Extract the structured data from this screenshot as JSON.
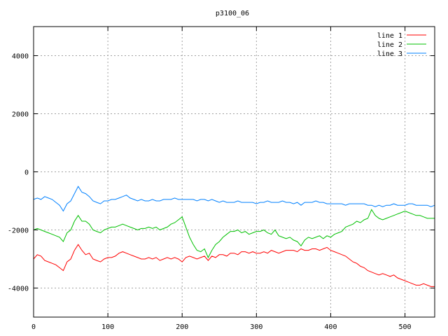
{
  "chart_data": {
    "type": "line",
    "title": "p3100_06",
    "xlabel": "",
    "ylabel": "",
    "xlim": [
      0,
      540
    ],
    "ylim": [
      -5000,
      5000
    ],
    "xticks": [
      0,
      100,
      200,
      300,
      400,
      500
    ],
    "yticks": [
      -4000,
      -2000,
      0,
      2000,
      4000
    ],
    "grid": true,
    "legend": "top-right",
    "series": [
      {
        "name": "line 1",
        "color": "#ff0000",
        "x": [
          0,
          5,
          10,
          15,
          20,
          25,
          30,
          35,
          40,
          45,
          50,
          55,
          60,
          65,
          70,
          75,
          80,
          85,
          90,
          95,
          100,
          105,
          110,
          115,
          120,
          125,
          130,
          135,
          140,
          145,
          150,
          155,
          160,
          165,
          170,
          175,
          180,
          185,
          190,
          195,
          200,
          205,
          210,
          215,
          220,
          225,
          230,
          235,
          240,
          245,
          250,
          255,
          260,
          265,
          270,
          275,
          280,
          285,
          290,
          295,
          300,
          305,
          310,
          315,
          320,
          325,
          330,
          335,
          340,
          345,
          350,
          355,
          360,
          365,
          370,
          375,
          380,
          385,
          390,
          395,
          400,
          405,
          410,
          415,
          420,
          425,
          430,
          435,
          440,
          445,
          450,
          455,
          460,
          465,
          470,
          475,
          480,
          485,
          490,
          495,
          500,
          505,
          510,
          515,
          520,
          525,
          530,
          535,
          540
        ],
        "y": [
          -3000,
          -2850,
          -2900,
          -3050,
          -3100,
          -3150,
          -3200,
          -3300,
          -3400,
          -3100,
          -3000,
          -2700,
          -2500,
          -2700,
          -2850,
          -2800,
          -3000,
          -3050,
          -3100,
          -3000,
          -2950,
          -2950,
          -2900,
          -2800,
          -2750,
          -2800,
          -2850,
          -2900,
          -2950,
          -3000,
          -3000,
          -2950,
          -3000,
          -2950,
          -3050,
          -3000,
          -2950,
          -3000,
          -2950,
          -3000,
          -3100,
          -2950,
          -2900,
          -2950,
          -3000,
          -2950,
          -2900,
          -3050,
          -2900,
          -2950,
          -2850,
          -2850,
          -2900,
          -2800,
          -2800,
          -2850,
          -2750,
          -2750,
          -2800,
          -2750,
          -2800,
          -2800,
          -2750,
          -2800,
          -2700,
          -2750,
          -2800,
          -2750,
          -2700,
          -2700,
          -2700,
          -2750,
          -2650,
          -2700,
          -2700,
          -2650,
          -2650,
          -2700,
          -2650,
          -2600,
          -2700,
          -2750,
          -2800,
          -2850,
          -2900,
          -3000,
          -3100,
          -3150,
          -3250,
          -3300,
          -3400,
          -3450,
          -3500,
          -3550,
          -3500,
          -3550,
          -3600,
          -3550,
          -3650,
          -3700,
          -3750,
          -3800,
          -3850,
          -3900,
          -3900,
          -3850,
          -3900,
          -3950,
          -3950
        ]
      },
      {
        "name": "line 2",
        "color": "#00c000",
        "x": [
          0,
          5,
          10,
          15,
          20,
          25,
          30,
          35,
          40,
          45,
          50,
          55,
          60,
          65,
          70,
          75,
          80,
          85,
          90,
          95,
          100,
          105,
          110,
          115,
          120,
          125,
          130,
          135,
          140,
          145,
          150,
          155,
          160,
          165,
          170,
          175,
          180,
          185,
          190,
          195,
          200,
          205,
          210,
          215,
          220,
          225,
          230,
          235,
          240,
          245,
          250,
          255,
          260,
          265,
          270,
          275,
          280,
          285,
          290,
          295,
          300,
          305,
          310,
          315,
          320,
          325,
          330,
          335,
          340,
          345,
          350,
          355,
          360,
          365,
          370,
          375,
          380,
          385,
          390,
          395,
          400,
          405,
          410,
          415,
          420,
          425,
          430,
          435,
          440,
          445,
          450,
          455,
          460,
          465,
          470,
          475,
          480,
          485,
          490,
          495,
          500,
          505,
          510,
          515,
          520,
          525,
          530,
          535,
          540
        ],
        "y": [
          -2000,
          -1950,
          -2000,
          -2050,
          -2100,
          -2150,
          -2200,
          -2250,
          -2400,
          -2100,
          -2000,
          -1700,
          -1500,
          -1700,
          -1700,
          -1800,
          -2000,
          -2050,
          -2100,
          -2000,
          -1950,
          -1900,
          -1900,
          -1850,
          -1800,
          -1850,
          -1900,
          -1950,
          -2000,
          -1950,
          -1950,
          -1900,
          -1950,
          -1900,
          -2000,
          -1950,
          -1900,
          -1800,
          -1750,
          -1650,
          -1550,
          -1900,
          -2250,
          -2500,
          -2700,
          -2750,
          -2650,
          -2950,
          -2700,
          -2500,
          -2400,
          -2250,
          -2150,
          -2050,
          -2050,
          -2000,
          -2100,
          -2050,
          -2150,
          -2100,
          -2050,
          -2050,
          -2000,
          -2100,
          -2150,
          -2000,
          -2200,
          -2250,
          -2300,
          -2250,
          -2350,
          -2400,
          -2550,
          -2350,
          -2250,
          -2300,
          -2250,
          -2200,
          -2300,
          -2200,
          -2250,
          -2150,
          -2100,
          -2050,
          -1900,
          -1850,
          -1800,
          -1700,
          -1750,
          -1650,
          -1600,
          -1300,
          -1500,
          -1600,
          -1650,
          -1600,
          -1550,
          -1500,
          -1450,
          -1400,
          -1350,
          -1400,
          -1450,
          -1500,
          -1500,
          -1550,
          -1600,
          -1600,
          -1600
        ]
      },
      {
        "name": "line 3",
        "color": "#0080ff",
        "x": [
          0,
          5,
          10,
          15,
          20,
          25,
          30,
          35,
          40,
          45,
          50,
          55,
          60,
          65,
          70,
          75,
          80,
          85,
          90,
          95,
          100,
          105,
          110,
          115,
          120,
          125,
          130,
          135,
          140,
          145,
          150,
          155,
          160,
          165,
          170,
          175,
          180,
          185,
          190,
          195,
          200,
          205,
          210,
          215,
          220,
          225,
          230,
          235,
          240,
          245,
          250,
          255,
          260,
          265,
          270,
          275,
          280,
          285,
          290,
          295,
          300,
          305,
          310,
          315,
          320,
          325,
          330,
          335,
          340,
          345,
          350,
          355,
          360,
          365,
          370,
          375,
          380,
          385,
          390,
          395,
          400,
          405,
          410,
          415,
          420,
          425,
          430,
          435,
          440,
          445,
          450,
          455,
          460,
          465,
          470,
          475,
          480,
          485,
          490,
          495,
          500,
          505,
          510,
          515,
          520,
          525,
          530,
          535,
          540
        ],
        "y": [
          -950,
          -900,
          -950,
          -850,
          -900,
          -950,
          -1050,
          -1150,
          -1350,
          -1100,
          -1000,
          -750,
          -500,
          -700,
          -750,
          -850,
          -1000,
          -1050,
          -1100,
          -1000,
          -1000,
          -950,
          -950,
          -900,
          -850,
          -800,
          -900,
          -950,
          -1000,
          -950,
          -1000,
          -1000,
          -950,
          -1000,
          -1000,
          -950,
          -950,
          -950,
          -900,
          -950,
          -950,
          -950,
          -950,
          -950,
          -1000,
          -950,
          -950,
          -1000,
          -950,
          -1000,
          -1050,
          -1000,
          -1050,
          -1050,
          -1050,
          -1000,
          -1050,
          -1050,
          -1050,
          -1050,
          -1100,
          -1050,
          -1050,
          -1000,
          -1050,
          -1050,
          -1050,
          -1000,
          -1050,
          -1050,
          -1100,
          -1050,
          -1150,
          -1050,
          -1050,
          -1050,
          -1000,
          -1050,
          -1050,
          -1100,
          -1100,
          -1100,
          -1100,
          -1100,
          -1150,
          -1100,
          -1100,
          -1100,
          -1100,
          -1100,
          -1150,
          -1150,
          -1200,
          -1150,
          -1200,
          -1150,
          -1150,
          -1100,
          -1150,
          -1150,
          -1150,
          -1100,
          -1100,
          -1150,
          -1150,
          -1150,
          -1150,
          -1200,
          -1150
        ]
      }
    ]
  }
}
